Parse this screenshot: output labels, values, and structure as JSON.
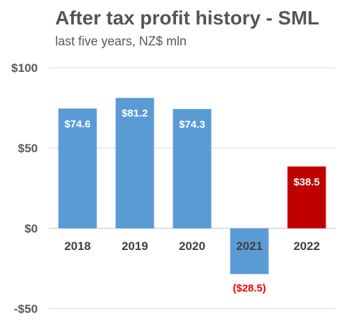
{
  "chart_data": {
    "type": "bar",
    "title": "After tax profit history - SML",
    "subtitle": "last five years, NZ$ mln",
    "xlabel": "",
    "ylabel": "",
    "categories": [
      "2018",
      "2019",
      "2020",
      "2021",
      "2022"
    ],
    "values": [
      74.6,
      81.2,
      74.3,
      -28.5,
      38.5
    ],
    "data_labels": [
      "$74.6",
      "$81.2",
      "$74.3",
      "($28.5)",
      "$38.5"
    ],
    "ylim": [
      -50,
      100
    ],
    "y_ticks": [
      100,
      50,
      0,
      -50
    ],
    "y_tick_labels": [
      "$100",
      "$50",
      "$0",
      "-$50"
    ],
    "grid": true,
    "legend": "none",
    "colors": {
      "bar_default": "#5b9bd5",
      "bar_highlight": "#c00000",
      "negative_label": "#ff0000",
      "gridline": "#d9d9d9"
    },
    "bar_colors": [
      "#5b9bd5",
      "#5b9bd5",
      "#5b9bd5",
      "#5b9bd5",
      "#c00000"
    ]
  }
}
